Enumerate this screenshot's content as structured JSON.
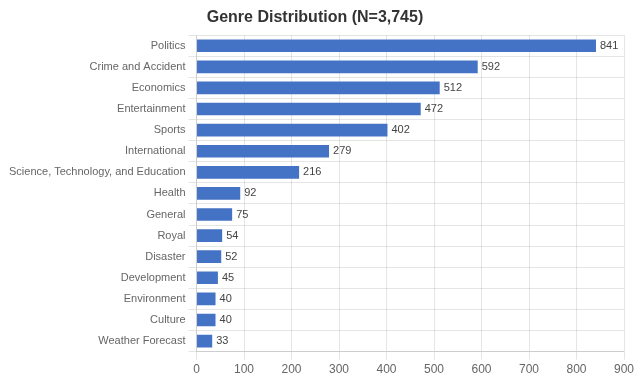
{
  "chart_data": {
    "type": "bar",
    "orientation": "horizontal",
    "title": "Genre Distribution (N=3,745)",
    "categories": [
      "Weather Forecast",
      "Culture",
      "Environment",
      "Development",
      "Disaster",
      "Royal",
      "General",
      "Health",
      "Science, Technology, and Education",
      "International",
      "Sports",
      "Entertainment",
      "Economics",
      "Crime and Accident",
      "Politics"
    ],
    "values": [
      33,
      40,
      40,
      45,
      52,
      54,
      75,
      92,
      216,
      279,
      402,
      472,
      512,
      592,
      841
    ],
    "color": "#4472C4",
    "xlim": [
      0,
      900
    ],
    "xticks": [
      0,
      100,
      200,
      300,
      400,
      500,
      600,
      700,
      800,
      900
    ],
    "grid": true,
    "data_labels": true
  }
}
